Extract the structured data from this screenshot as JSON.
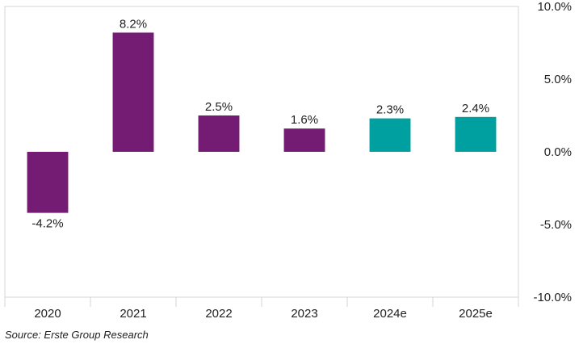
{
  "chart_data": {
    "type": "bar",
    "categories": [
      "2020",
      "2021",
      "2022",
      "2023",
      "2024e",
      "2025e"
    ],
    "values": [
      -4.2,
      8.2,
      2.5,
      1.6,
      2.3,
      2.4
    ],
    "labels": [
      "-4.2%",
      "8.2%",
      "2.5%",
      "1.6%",
      "2.3%",
      "2.4%"
    ],
    "bar_colors": [
      "#741b74",
      "#741b74",
      "#741b74",
      "#741b74",
      "#00a0a0",
      "#00a0a0"
    ],
    "ylim": [
      -10,
      10
    ],
    "yticks": [
      10,
      5,
      0,
      -5,
      -10
    ],
    "ytick_labels": [
      "10.0%",
      "5.0%",
      "0.0%",
      "-5.0%",
      "-10.0%"
    ],
    "y_axis_position": "right",
    "grid": false,
    "title": "",
    "xlabel": "",
    "ylabel": ""
  },
  "footer": {
    "source": "Source: Erste Group Research"
  }
}
